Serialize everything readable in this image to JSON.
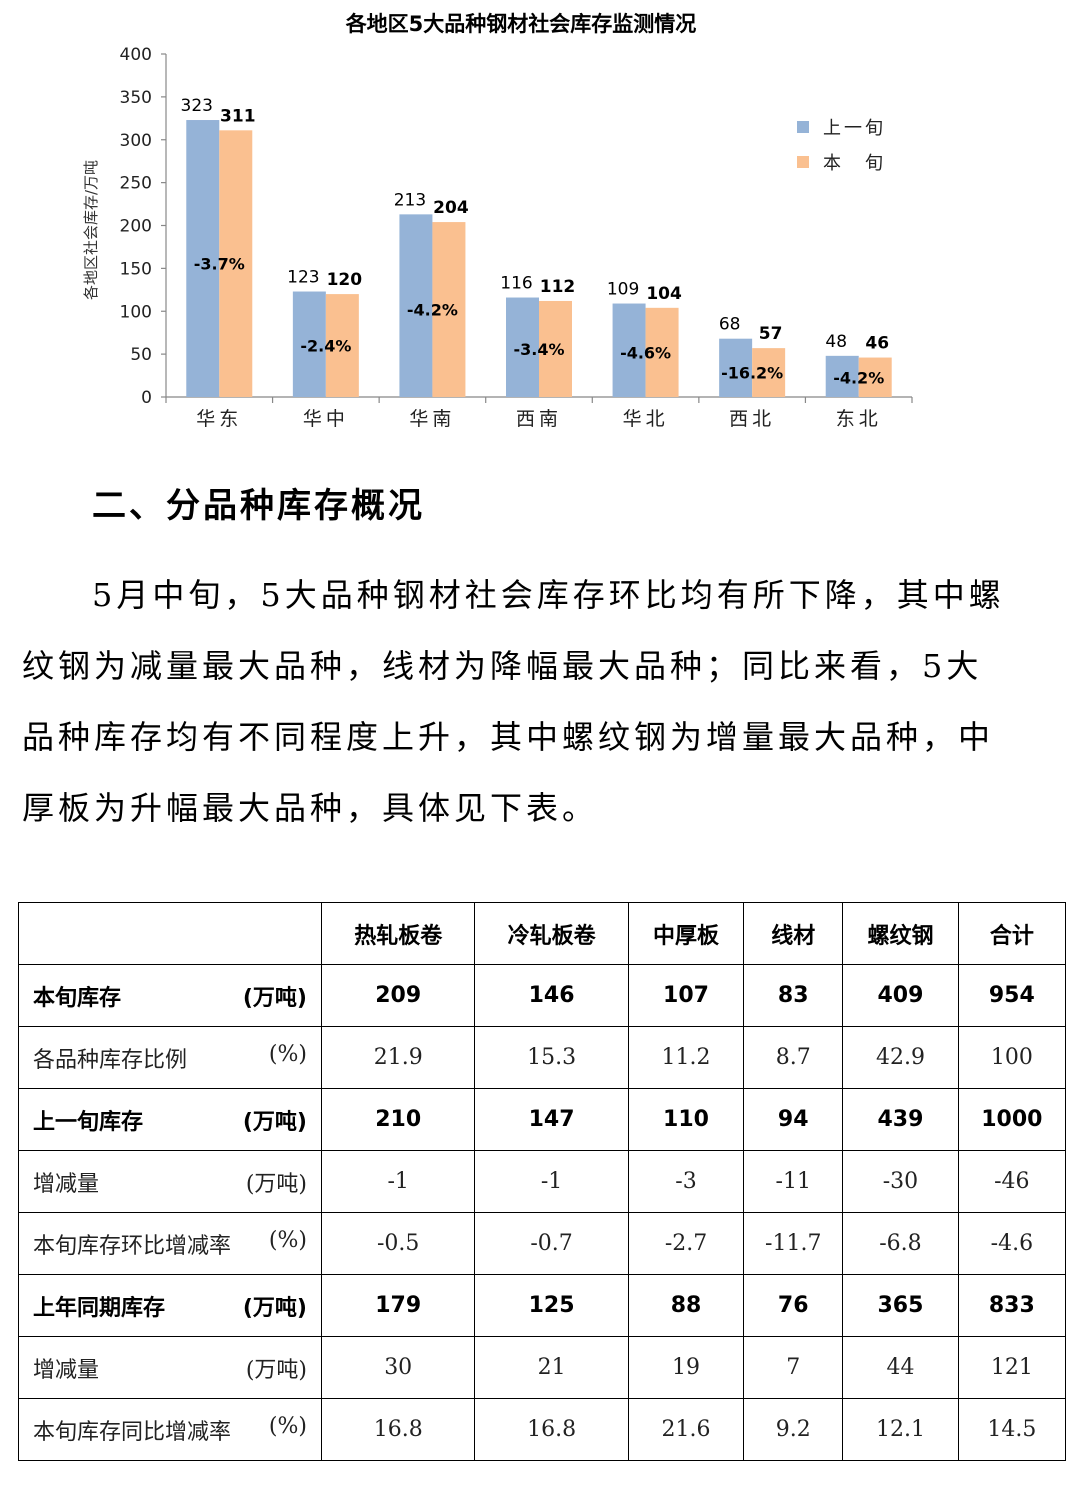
{
  "chart_data": {
    "type": "bar",
    "title": "各地区5大品种钢材社会库存监测情况",
    "ylabel": "各地区社会库存/万吨",
    "ylim": [
      0,
      400
    ],
    "yticks": [
      "0",
      "50",
      "100",
      "150",
      "200",
      "250",
      "300",
      "350",
      "400"
    ],
    "categories": [
      "华东",
      "华中",
      "华南",
      "西南",
      "华北",
      "西北",
      "东北"
    ],
    "series": [
      {
        "name": "上一旬",
        "values": [
          323,
          123,
          213,
          116,
          109,
          68,
          48
        ],
        "color": "#95b3d7"
      },
      {
        "name": "本　旬",
        "values": [
          311,
          120,
          204,
          112,
          104,
          57,
          46
        ],
        "color": "#fac090"
      }
    ],
    "changes": [
      "-3.7%",
      "-2.4%",
      "-4.2%",
      "-3.4%",
      "-4.6%",
      "-16.2%",
      "-4.2%"
    ],
    "legend": "top-right"
  },
  "section": {
    "heading": "二、分品种库存概况",
    "paragraph": "5月中旬，5大品种钢材社会库存环比均有所下降，其中螺纹钢为减量最大品种，线材为降幅最大品种；同比来看，5大品种库存均有不同程度上升，其中螺纹钢为增量最大品种，中厚板为升幅最大品种，具体见下表。"
  },
  "table": {
    "headers": [
      "",
      "热轧板卷",
      "冷轧板卷",
      "中厚板",
      "线材",
      "螺纹钢",
      "合计"
    ],
    "rows": [
      {
        "label": "本旬库存",
        "unit": "(万吨)",
        "style": "bold",
        "values": [
          "209",
          "146",
          "107",
          "83",
          "409",
          "954"
        ]
      },
      {
        "label": "各品种库存比例",
        "unit": "(%)",
        "style": "light",
        "values": [
          "21.9",
          "15.3",
          "11.2",
          "8.7",
          "42.9",
          "100"
        ]
      },
      {
        "label": "上一旬库存",
        "unit": "(万吨)",
        "style": "bold",
        "values": [
          "210",
          "147",
          "110",
          "94",
          "439",
          "1000"
        ]
      },
      {
        "label": "增减量",
        "unit": "(万吨)",
        "style": "light",
        "values": [
          "-1",
          "-1",
          "-3",
          "-11",
          "-30",
          "-46"
        ]
      },
      {
        "label": "本旬库存环比增减率",
        "unit": "(%)",
        "style": "light",
        "values": [
          "-0.5",
          "-0.7",
          "-2.7",
          "-11.7",
          "-6.8",
          "-4.6"
        ]
      },
      {
        "label": "上年同期库存",
        "unit": "(万吨)",
        "style": "bold",
        "values": [
          "179",
          "125",
          "88",
          "76",
          "365",
          "833"
        ]
      },
      {
        "label": "增减量",
        "unit": "(万吨)",
        "style": "light",
        "values": [
          "30",
          "21",
          "19",
          "7",
          "44",
          "121"
        ]
      },
      {
        "label": "本旬库存同比增减率",
        "unit": "(%)",
        "style": "light",
        "values": [
          "16.8",
          "16.8",
          "21.6",
          "9.2",
          "12.1",
          "14.5"
        ]
      }
    ]
  }
}
